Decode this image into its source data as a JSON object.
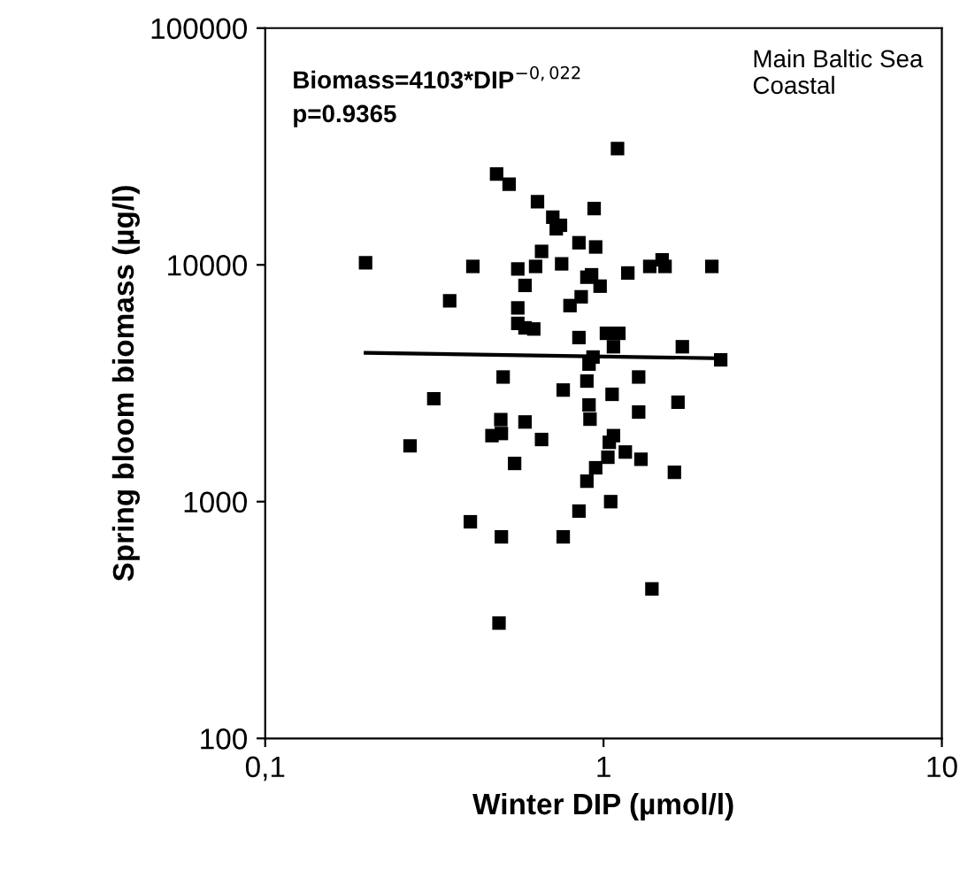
{
  "chart_data": {
    "type": "scatter",
    "xlabel": "Winter DIP (µmol/l)",
    "ylabel": "Spring bloom biomass (µg/l)",
    "log": "xy",
    "xlim": [
      0.1,
      10
    ],
    "ylim": [
      100,
      100000
    ],
    "xticks": [
      {
        "value": 0.1,
        "label": "0,1"
      },
      1,
      10
    ],
    "yticks": [
      100,
      1000,
      10000,
      100000
    ],
    "grid": false,
    "marker": "square",
    "annotations": [
      "Biomass=4103*DIP$^{−0,022}$\np=0.9365",
      "Main Baltic Sea\nCoastal"
    ],
    "series": [
      {
        "color": "#000000",
        "x": [
          0.198,
          0.411,
          0.351,
          0.483,
          0.526,
          0.638,
          0.708,
          0.746,
          0.725,
          0.938,
          1.1,
          0.656,
          0.846,
          0.948,
          0.558,
          0.63,
          0.752,
          0.586,
          0.893,
          0.922,
          0.977,
          0.859,
          0.796,
          0.558,
          0.558,
          0.586,
          0.622,
          0.846,
          1.02,
          1.11,
          1.07,
          0.931,
          0.906,
          0.505,
          0.315,
          0.893,
          0.76,
          1.06,
          0.906,
          0.497,
          0.586,
          0.912,
          1.18,
          1.37,
          1.49,
          1.52,
          2.09,
          1.71,
          2.22,
          1.27,
          1.27,
          1.66,
          0.468,
          0.499,
          0.656,
          0.268,
          1.07,
          1.04,
          1.03,
          0.546,
          0.948,
          0.893,
          1.05,
          0.846,
          0.404,
          0.499,
          0.76,
          0.491,
          1.16,
          1.29,
          1.62,
          1.39
        ],
        "values": [
          10200,
          9850,
          7050,
          24200,
          21900,
          18500,
          15900,
          14700,
          14200,
          17300,
          31000,
          11400,
          12400,
          11900,
          9610,
          9850,
          10100,
          8190,
          8870,
          9080,
          8130,
          7330,
          6730,
          6580,
          5660,
          5420,
          5360,
          4930,
          5140,
          5140,
          4510,
          4080,
          3810,
          3360,
          2720,
          3230,
          2960,
          2840,
          2560,
          2220,
          2170,
          2230,
          9240,
          9850,
          10500,
          9850,
          9850,
          4510,
          3970,
          3360,
          2390,
          2630,
          1900,
          1940,
          1830,
          1720,
          1900,
          1780,
          1540,
          1450,
          1390,
          1220,
          1000,
          912,
          822,
          710,
          710,
          307,
          1620,
          1510,
          1330,
          428
        ]
      },
      {
        "type": "line",
        "color": "#000000",
        "marker": "none",
        "x": [
          0.198,
          2.22
        ],
        "values": [
          4250,
          4030
        ]
      }
    ]
  }
}
